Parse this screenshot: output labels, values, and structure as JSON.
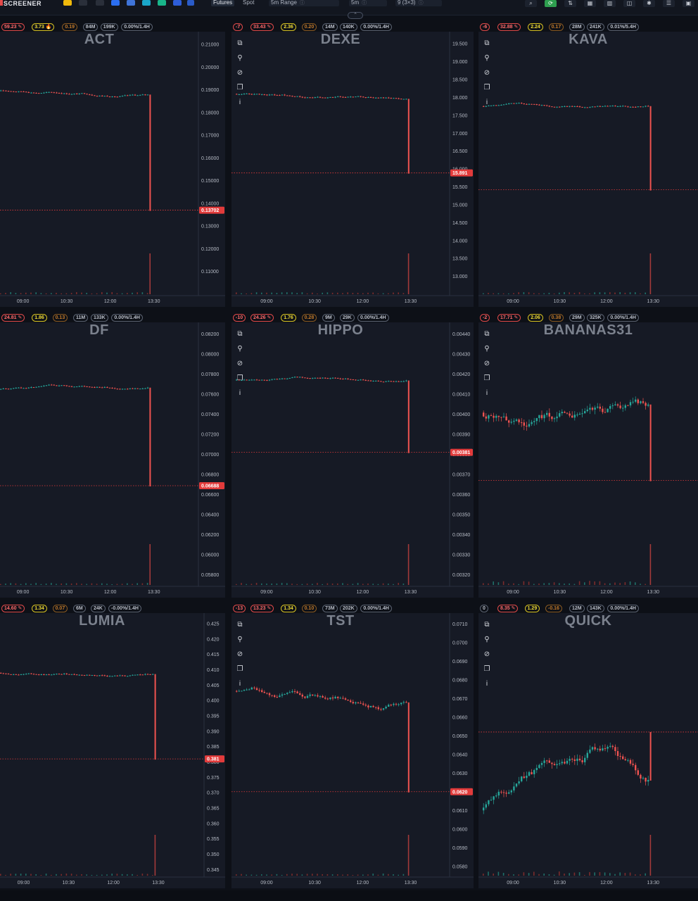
{
  "app": {
    "brand": "SCREENER",
    "colors": {
      "bg": "#0d1017",
      "panel": "#161a25",
      "up": "#26a69a",
      "down": "#ef5350",
      "price_line": "#e23b3b"
    }
  },
  "toolbar": {
    "exchange_icons": [
      "binance-icon",
      "bybit-icon",
      "okx-icon",
      "gate-icon",
      "bitget-icon",
      "mexc-icon",
      "kucoin-icon",
      "htx-icon",
      "other-exchange-icon"
    ],
    "market_type": [
      "Futures",
      "Spot"
    ],
    "market_active": "Futures",
    "range_label": "5m Range",
    "interval_label": "5m",
    "grid_label": "9 (3×3)",
    "right_icons": [
      "search-icon",
      "alert-icon",
      "sort-icon",
      "layout-icon",
      "columns-icon",
      "chart-icon",
      "settings-icon",
      "list-icon",
      "window-icon"
    ]
  },
  "panels": [
    {
      "symbol": "ACT",
      "badges": [
        {
          "text": "59.23 ✎",
          "style": "red"
        },
        {
          "text": "3.73 🔥",
          "style": "yellow"
        },
        {
          "text": "0.19",
          "style": "orange"
        },
        {
          "text": "84M",
          "style": "plain"
        },
        {
          "text": "199K",
          "style": "plain"
        },
        {
          "text": "0.00%/1.4H",
          "style": "plain"
        }
      ],
      "price_ticks": [
        "0.21000",
        "0.20000",
        "0.19000",
        "0.18000",
        "0.17000",
        "0.16000",
        "0.15000",
        "0.14000",
        "0.13000",
        "0.12000",
        "0.11000"
      ],
      "time_ticks": [
        "09:00",
        "10:30",
        "12:00",
        "13:30"
      ],
      "current_price": "0.13702",
      "chart_data": {
        "type": "candlestick",
        "ylim": [
          0.1,
          0.215
        ],
        "base": 0.1895,
        "last": 0.13702,
        "volatility": "low"
      }
    },
    {
      "symbol": "DEXE",
      "badges": [
        {
          "text": "-7",
          "style": "red"
        },
        {
          "text": "33.43 ✎",
          "style": "red"
        },
        {
          "text": "2.36",
          "style": "yellow"
        },
        {
          "text": "0.20",
          "style": "orange"
        },
        {
          "text": "14M",
          "style": "plain"
        },
        {
          "text": "140K",
          "style": "plain"
        },
        {
          "text": "0.00%/1.4H",
          "style": "plain"
        }
      ],
      "price_ticks": [
        "19.500",
        "19.000",
        "18.500",
        "18.000",
        "17.500",
        "17.000",
        "16.500",
        "16.000",
        "15.500",
        "15.000",
        "14.500",
        "14.000",
        "13.500",
        "13.000"
      ],
      "time_ticks": [
        "09:00",
        "10:30",
        "12:00",
        "13:30"
      ],
      "current_price": "15.891",
      "chart_data": {
        "type": "candlestick",
        "ylim": [
          12.5,
          19.8
        ],
        "base": 18.1,
        "last": 15.891,
        "volatility": "low"
      }
    },
    {
      "symbol": "KAVA",
      "badges": [
        {
          "text": "-6",
          "style": "red"
        },
        {
          "text": "32.88 ✎",
          "style": "red"
        },
        {
          "text": "2.24",
          "style": "yellow"
        },
        {
          "text": "0.17",
          "style": "orange"
        },
        {
          "text": "28M",
          "style": "plain"
        },
        {
          "text": "241K",
          "style": "plain"
        },
        {
          "text": "0.01%/5.4H",
          "style": "plain"
        }
      ],
      "price_ticks": [],
      "time_ticks": [
        "09:00",
        "10:30",
        "12:00",
        "13:30"
      ],
      "current_price": "",
      "chart_data": {
        "type": "candlestick",
        "ylim": [
          0,
          1
        ],
        "base": 0.72,
        "last": 0.4,
        "volatility": "low"
      }
    },
    {
      "symbol": "DF",
      "badges": [
        {
          "text": "24.81 ✎",
          "style": "red"
        },
        {
          "text": "1.86",
          "style": "yellow"
        },
        {
          "text": "0.13",
          "style": "orange"
        },
        {
          "text": "11M",
          "style": "plain"
        },
        {
          "text": "133K",
          "style": "plain"
        },
        {
          "text": "0.00%/1.4H",
          "style": "plain"
        }
      ],
      "price_ticks": [
        "0.08200",
        "0.08000",
        "0.07800",
        "0.07600",
        "0.07400",
        "0.07200",
        "0.07000",
        "0.06800",
        "0.06600",
        "0.06400",
        "0.06200",
        "0.06000",
        "0.05800"
      ],
      "time_ticks": [
        "09:00",
        "10:30",
        "12:00",
        "13:30"
      ],
      "current_price": "0.06688",
      "chart_data": {
        "type": "candlestick",
        "ylim": [
          0.057,
          0.083
        ],
        "base": 0.0765,
        "last": 0.06688,
        "volatility": "low"
      }
    },
    {
      "symbol": "HIPPO",
      "badges": [
        {
          "text": "-10",
          "style": "red"
        },
        {
          "text": "24.26 ✎",
          "style": "red"
        },
        {
          "text": "1.76",
          "style": "yellow"
        },
        {
          "text": "0.28",
          "style": "orange"
        },
        {
          "text": "9M",
          "style": "plain"
        },
        {
          "text": "29K",
          "style": "plain"
        },
        {
          "text": "0.00%/1.4H",
          "style": "plain"
        }
      ],
      "price_ticks": [
        "0.00440",
        "0.00430",
        "0.00420",
        "0.00410",
        "0.00400",
        "0.00390",
        "0.00380",
        "0.00370",
        "0.00360",
        "0.00350",
        "0.00340",
        "0.00330",
        "0.00320"
      ],
      "time_ticks": [
        "09:00",
        "10:30",
        "12:00",
        "13:30"
      ],
      "current_price": "0.00381",
      "chart_data": {
        "type": "candlestick",
        "ylim": [
          0.00315,
          0.00445
        ],
        "base": 0.00417,
        "last": 0.00381,
        "volatility": "low"
      }
    },
    {
      "symbol": "BANANAS31",
      "badges": [
        {
          "text": "-2",
          "style": "red"
        },
        {
          "text": "17.71 ✎",
          "style": "red"
        },
        {
          "text": "2.06",
          "style": "yellow"
        },
        {
          "text": "0.38",
          "style": "orange"
        },
        {
          "text": "29M",
          "style": "plain"
        },
        {
          "text": "325K",
          "style": "plain"
        },
        {
          "text": "0.00%/1.4H",
          "style": "plain"
        }
      ],
      "price_ticks": [],
      "time_ticks": [
        "09:00",
        "10:30",
        "12:00",
        "13:30"
      ],
      "current_price": "",
      "chart_data": {
        "type": "candlestick",
        "ylim": [
          0,
          1
        ],
        "base": 0.66,
        "last": 0.4,
        "volatility": "high"
      }
    },
    {
      "symbol": "LUMIA",
      "badges": [
        {
          "text": "14.60 ✎",
          "style": "red"
        },
        {
          "text": "1.34",
          "style": "yellow"
        },
        {
          "text": "0.07",
          "style": "orange"
        },
        {
          "text": "6M",
          "style": "plain"
        },
        {
          "text": "24K",
          "style": "plain"
        },
        {
          "text": "-0.00%/1.4H",
          "style": "plain"
        }
      ],
      "price_ticks": [
        "0.425",
        "0.420",
        "0.415",
        "0.410",
        "0.405",
        "0.400",
        "0.395",
        "0.390",
        "0.385",
        "0.380",
        "0.375",
        "0.370",
        "0.365",
        "0.360",
        "0.355",
        "0.350",
        "0.345"
      ],
      "time_ticks": [
        "09:00",
        "10:30",
        "12:00",
        "13:30"
      ],
      "current_price": "0.381",
      "chart_data": {
        "type": "candlestick",
        "ylim": [
          0.343,
          0.428
        ],
        "base": 0.409,
        "last": 0.381,
        "volatility": "low"
      }
    },
    {
      "symbol": "TST",
      "badges": [
        {
          "text": "-13",
          "style": "red"
        },
        {
          "text": "13.23 ✎",
          "style": "red"
        },
        {
          "text": "1.34",
          "style": "yellow"
        },
        {
          "text": "0.10",
          "style": "orange"
        },
        {
          "text": "73M",
          "style": "plain"
        },
        {
          "text": "202K",
          "style": "plain"
        },
        {
          "text": "0.00%/1.4H",
          "style": "plain"
        }
      ],
      "price_ticks": [
        "0.0710",
        "0.0700",
        "0.0690",
        "0.0680",
        "0.0670",
        "0.0660",
        "0.0650",
        "0.0640",
        "0.0630",
        "0.0620",
        "0.0610",
        "0.0600",
        "0.0590",
        "0.0580"
      ],
      "time_ticks": [
        "09:00",
        "10:30",
        "12:00",
        "13:30"
      ],
      "current_price": "0.0620",
      "chart_data": {
        "type": "candlestick",
        "ylim": [
          0.0575,
          0.0715
        ],
        "base": 0.0674,
        "last": 0.062,
        "volatility": "mid"
      }
    },
    {
      "symbol": "QUICK",
      "badges": [
        {
          "text": "0",
          "style": "plain"
        },
        {
          "text": "8.35 ✎",
          "style": "red"
        },
        {
          "text": "1.29",
          "style": "yellow"
        },
        {
          "text": "-0.16",
          "style": "orange"
        },
        {
          "text": "12M",
          "style": "plain"
        },
        {
          "text": "143K",
          "style": "plain"
        },
        {
          "text": "0.00%/1.4H",
          "style": "plain"
        }
      ],
      "price_ticks": [],
      "time_ticks": [
        "09:00",
        "10:30",
        "12:00",
        "13:30"
      ],
      "current_price": "",
      "chart_data": {
        "type": "candlestick",
        "ylim": [
          0,
          1
        ],
        "base": 0.25,
        "last": 0.55,
        "volatility": "trend"
      }
    }
  ]
}
